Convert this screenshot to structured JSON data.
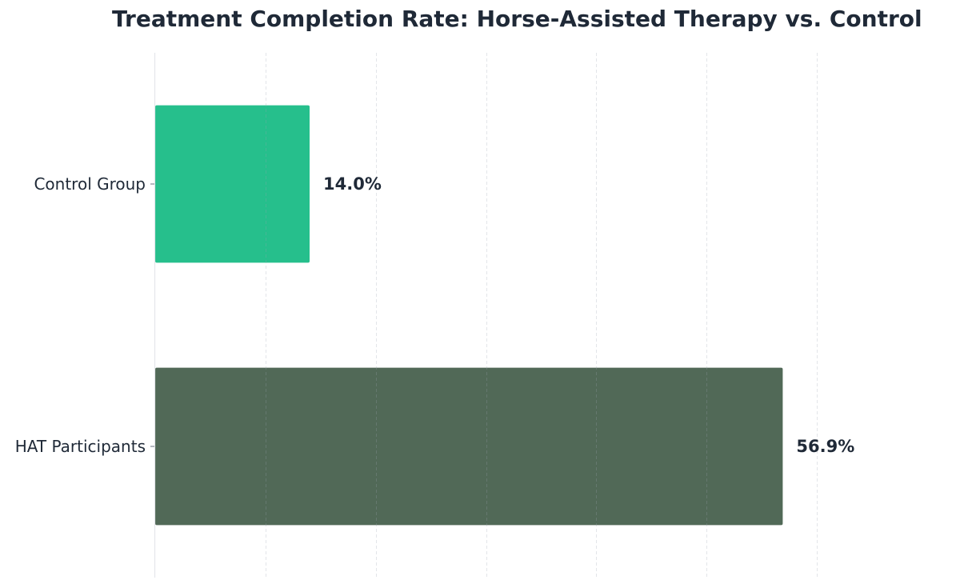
{
  "chart_data": {
    "type": "bar",
    "orientation": "horizontal",
    "title": "Treatment Completion Rate: Horse-Assisted Therapy vs. Control",
    "xlabel": "",
    "ylabel": "",
    "categories": [
      "Control Group",
      "HAT Participants"
    ],
    "values": [
      14.0,
      56.9
    ],
    "value_labels": [
      "14.0%",
      "56.9%"
    ],
    "colors": [
      "#26bf8c",
      "#516957"
    ],
    "xlim": [
      0,
      70
    ],
    "grid": "vertical dashed",
    "legend": "none"
  }
}
